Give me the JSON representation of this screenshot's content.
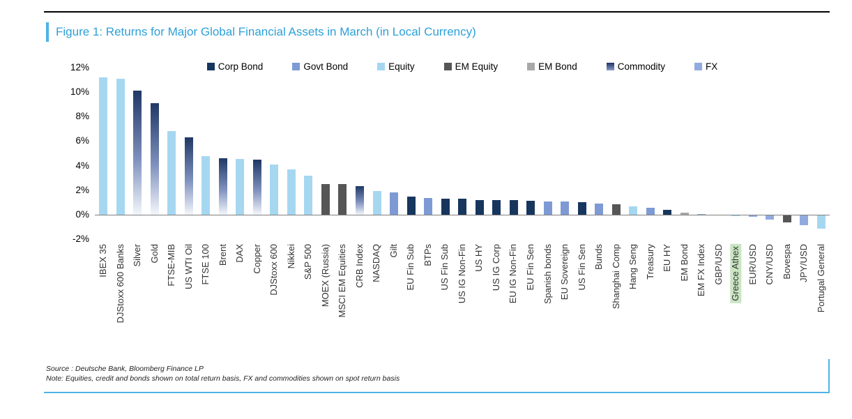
{
  "figure": {
    "source": "Source : Deutsche Bank, Bloomberg Finance LP",
    "note": "Note: Equities, credit and bonds shown on total return basis, FX and commodities shown on spot return basis"
  },
  "colors": {
    "accent_blue": "#4db4e6",
    "title_text": "#2da0d8",
    "axis_line": "#808080",
    "highlight_green": "#c9e5c2"
  },
  "chart_data": {
    "type": "bar",
    "title": "Figure 1: Returns for Major Global Financial Assets in March (in Local Currency)",
    "xlabel": "",
    "ylabel": "",
    "ylim": [
      -2,
      12
    ],
    "grid": false,
    "legend_position": "top",
    "yticks": [
      "12%",
      "10%",
      "8%",
      "6%",
      "4%",
      "2%",
      "0%",
      "-2%"
    ],
    "series_colors": {
      "Corp Bond": "#17365d",
      "Govt Bond": "#7e9ad5",
      "Equity": "#a6d7f1",
      "EM Equity": "#565656",
      "EM Bond": "#a8a8a8",
      "Commodity": "gradient",
      "FX": "#92abdf"
    },
    "legend": [
      {
        "label": "Corp Bond",
        "color": "#17365d"
      },
      {
        "label": "Govt Bond",
        "color": "#7e9ad5"
      },
      {
        "label": "Equity",
        "color": "#a6d7f1"
      },
      {
        "label": "EM Equity",
        "color": "#565656"
      },
      {
        "label": "EM Bond",
        "color": "#a8a8a8"
      },
      {
        "label": "Commodity",
        "color": "#203864",
        "gradient": true
      },
      {
        "label": "FX",
        "color": "#92abdf"
      }
    ],
    "points": [
      {
        "label": "IBEX 35",
        "value": 11.2,
        "series": "Equity"
      },
      {
        "label": "DJStoxx 600 Banks",
        "value": 11.1,
        "series": "Equity"
      },
      {
        "label": "Silver",
        "value": 10.1,
        "series": "Commodity"
      },
      {
        "label": "Gold",
        "value": 9.1,
        "series": "Commodity"
      },
      {
        "label": "FTSE-MIB",
        "value": 6.8,
        "series": "Equity"
      },
      {
        "label": "US WTI Oil",
        "value": 6.3,
        "series": "Commodity"
      },
      {
        "label": "FTSE 100",
        "value": 4.8,
        "series": "Equity"
      },
      {
        "label": "Brent",
        "value": 4.6,
        "series": "Commodity"
      },
      {
        "label": "DAX",
        "value": 4.55,
        "series": "Equity"
      },
      {
        "label": "Copper",
        "value": 4.5,
        "series": "Commodity"
      },
      {
        "label": "DJStoxx 600",
        "value": 4.1,
        "series": "Equity"
      },
      {
        "label": "Nikkei",
        "value": 3.7,
        "series": "Equity"
      },
      {
        "label": "S&P 500",
        "value": 3.2,
        "series": "Equity"
      },
      {
        "label": "MOEX (Russia)",
        "value": 2.5,
        "series": "EM Equity"
      },
      {
        "label": "MSCI EM Equities",
        "value": 2.5,
        "series": "EM Equity"
      },
      {
        "label": "CRB Index",
        "value": 2.3,
        "series": "Commodity"
      },
      {
        "label": "NASDAQ",
        "value": 1.9,
        "series": "Equity"
      },
      {
        "label": "Gilt",
        "value": 1.8,
        "series": "Govt Bond"
      },
      {
        "label": "EU Fin Sub",
        "value": 1.5,
        "series": "Corp Bond"
      },
      {
        "label": "BTPs",
        "value": 1.35,
        "series": "Govt Bond"
      },
      {
        "label": "US Fin Sub",
        "value": 1.3,
        "series": "Corp Bond"
      },
      {
        "label": "US IG Non-Fin",
        "value": 1.3,
        "series": "Corp Bond"
      },
      {
        "label": "US HY",
        "value": 1.2,
        "series": "Corp Bond"
      },
      {
        "label": "US IG Corp",
        "value": 1.2,
        "series": "Corp Bond"
      },
      {
        "label": "EU IG Non-Fin",
        "value": 1.2,
        "series": "Corp Bond"
      },
      {
        "label": "EU Fin Sen",
        "value": 1.15,
        "series": "Corp Bond"
      },
      {
        "label": "Spanish bonds",
        "value": 1.1,
        "series": "Govt Bond"
      },
      {
        "label": "EU Sovereign",
        "value": 1.05,
        "series": "Govt Bond"
      },
      {
        "label": "US Fin Sen",
        "value": 1.0,
        "series": "Corp Bond"
      },
      {
        "label": "Bunds",
        "value": 0.9,
        "series": "Govt Bond"
      },
      {
        "label": "Shanghai Comp",
        "value": 0.85,
        "series": "EM Equity"
      },
      {
        "label": "Hang Seng",
        "value": 0.65,
        "series": "Equity"
      },
      {
        "label": "Treasury",
        "value": 0.55,
        "series": "Govt Bond"
      },
      {
        "label": "EU HY",
        "value": 0.4,
        "series": "Corp Bond"
      },
      {
        "label": "EM Bond",
        "value": 0.15,
        "series": "EM Bond"
      },
      {
        "label": "EM FX Index",
        "value": 0.05,
        "series": "FX"
      },
      {
        "label": "GBP/USD",
        "value": 0.0,
        "series": "FX"
      },
      {
        "label": "Greece Athex",
        "value": -0.05,
        "series": "Equity",
        "highlight": true
      },
      {
        "label": "EUR/USD",
        "value": -0.15,
        "series": "FX"
      },
      {
        "label": "CNY/USD",
        "value": -0.35,
        "series": "FX"
      },
      {
        "label": "Bovespa",
        "value": -0.55,
        "series": "EM Equity"
      },
      {
        "label": "JPY/USD",
        "value": -0.8,
        "series": "FX"
      },
      {
        "label": "Portugal General",
        "value": -1.1,
        "series": "Equity"
      }
    ]
  }
}
